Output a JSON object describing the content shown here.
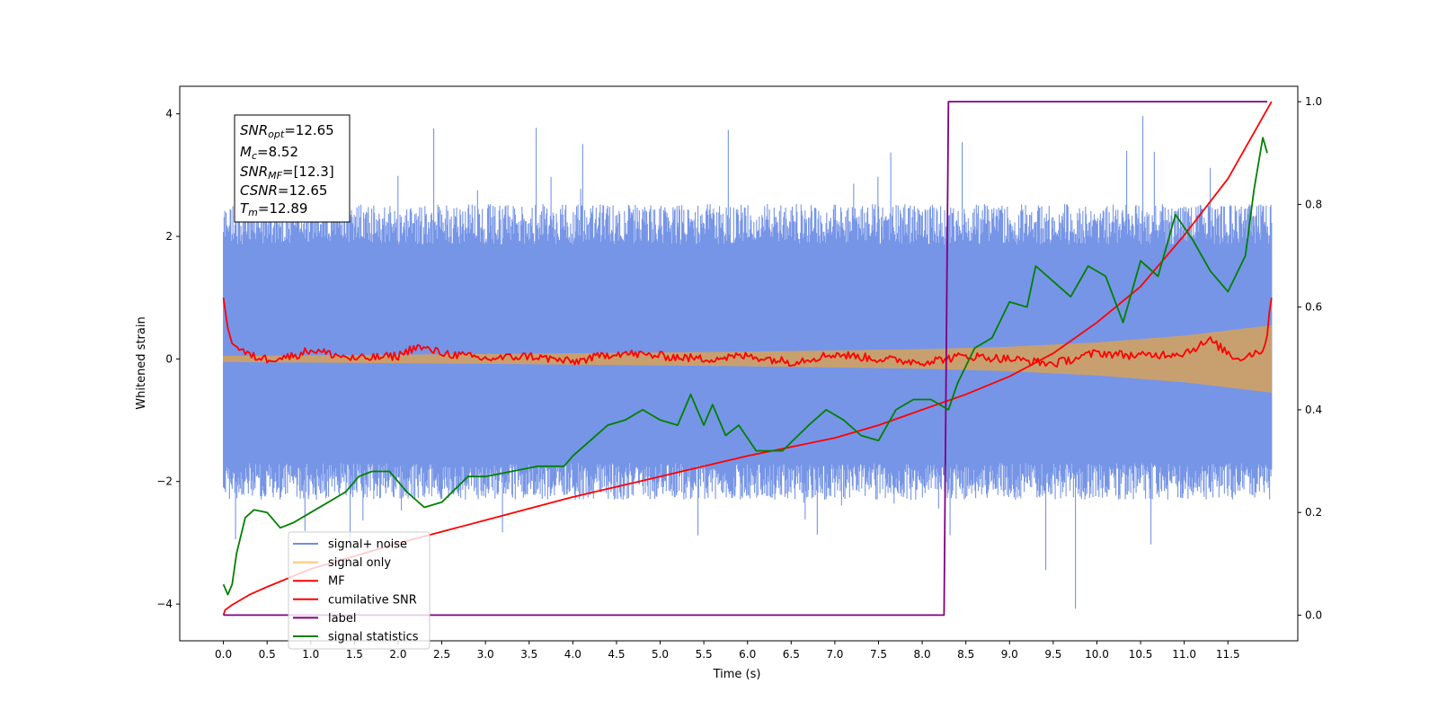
{
  "chart_data": {
    "type": "line",
    "xlabel": "Time (s)",
    "ylabel": "Whitened strain",
    "xlim": [
      -0.5,
      12.3
    ],
    "ylim_left": [
      -4.6,
      4.45
    ],
    "ylim_right": [
      -0.05,
      1.03
    ],
    "x_ticks": [
      "0.0",
      "0.5",
      "1.0",
      "1.5",
      "2.0",
      "2.5",
      "3.0",
      "3.5",
      "4.0",
      "4.5",
      "5.0",
      "5.5",
      "6.0",
      "6.5",
      "7.0",
      "7.5",
      "8.0",
      "8.5",
      "9.0",
      "9.5",
      "10.0",
      "10.5",
      "11.0",
      "11.5"
    ],
    "y_ticks_left": [
      "4",
      "2",
      "0",
      "−2",
      "−4"
    ],
    "y_ticks_right": [
      "1.0",
      "0.8",
      "0.6",
      "0.4",
      "0.2",
      "0.0"
    ],
    "annotation": {
      "snr_opt": {
        "main": "SNR",
        "sub": "opt",
        "value": "=12.65"
      },
      "mc": {
        "main": "M",
        "sub": "c",
        "value": "=8.52"
      },
      "snr_mf": {
        "main": "SNR",
        "sub": "MF",
        "value": "=[12.3]"
      },
      "csnr": {
        "main": "CSNR",
        "value": "=12.65"
      },
      "tm": {
        "main": "T",
        "sub": "m",
        "value": "=12.89"
      }
    },
    "legend": {
      "placement": "lower-left",
      "entries": [
        {
          "label": "signal+ noise",
          "color": "#6f8fe6"
        },
        {
          "label": "signal only",
          "color": "#ffc87a"
        },
        {
          "label": "MF",
          "color": "#ff0000"
        },
        {
          "label": "cumilative SNR",
          "color": "#ff0000"
        },
        {
          "label": "label",
          "color": "#800080"
        },
        {
          "label": "signal statistics",
          "color": "#008000"
        }
      ]
    },
    "series": [
      {
        "name": "signal+ noise",
        "axis": "left",
        "kind": "noise-band",
        "x_range": [
          0.0,
          12.0
        ],
        "envelope_lower": -2.0,
        "envelope_upper": 2.2,
        "peak_max": 4.0,
        "peak_min": -4.1,
        "color": "#6f8fe6"
      },
      {
        "name": "signal only",
        "axis": "left",
        "kind": "chirp",
        "x": [
          0.0,
          3.0,
          6.0,
          8.0,
          9.0,
          10.0,
          11.0,
          12.0
        ],
        "amplitude": [
          0.05,
          0.08,
          0.12,
          0.16,
          0.2,
          0.27,
          0.38,
          0.55
        ],
        "color": "#c8a070"
      },
      {
        "name": "MF",
        "axis": "left",
        "x": [
          0.0,
          0.05,
          0.1,
          0.2,
          0.3,
          0.5,
          0.8,
          1.0,
          1.5,
          2.0,
          2.2,
          2.5,
          3.0,
          3.5,
          4.0,
          4.5,
          5.0,
          5.5,
          6.0,
          6.5,
          7.0,
          7.5,
          8.0,
          8.5,
          9.0,
          9.5,
          10.0,
          10.5,
          11.0,
          11.3,
          11.6,
          11.9,
          11.95,
          12.0
        ],
        "y": [
          1.0,
          0.5,
          0.25,
          0.15,
          0.05,
          0.0,
          0.05,
          0.15,
          0.0,
          0.05,
          0.2,
          0.1,
          0.0,
          0.05,
          -0.05,
          0.1,
          0.05,
          0.0,
          0.05,
          -0.05,
          0.08,
          0.0,
          -0.05,
          0.05,
          0.0,
          -0.08,
          0.1,
          0.05,
          0.1,
          0.3,
          0.0,
          0.15,
          0.4,
          1.0
        ],
        "color": "#ff0000"
      },
      {
        "name": "cumilative SNR",
        "axis": "right",
        "x": [
          0.0,
          0.02,
          0.1,
          0.3,
          0.5,
          1.0,
          2.0,
          3.0,
          4.0,
          5.0,
          6.0,
          7.0,
          7.5,
          8.0,
          8.5,
          9.0,
          9.5,
          10.0,
          10.5,
          11.0,
          11.5,
          12.0
        ],
        "y": [
          0.0,
          0.01,
          0.02,
          0.04,
          0.055,
          0.09,
          0.14,
          0.185,
          0.23,
          0.27,
          0.31,
          0.345,
          0.37,
          0.4,
          0.43,
          0.465,
          0.51,
          0.57,
          0.64,
          0.74,
          0.85,
          1.0
        ],
        "color": "#ff0000"
      },
      {
        "name": "label",
        "axis": "right",
        "x": [
          0.0,
          8.25,
          8.3,
          11.95
        ],
        "y": [
          0.0,
          0.0,
          1.0,
          1.0
        ],
        "color": "#800080"
      },
      {
        "name": "signal statistics",
        "axis": "right",
        "x": [
          0.0,
          0.05,
          0.1,
          0.15,
          0.25,
          0.35,
          0.5,
          0.65,
          0.8,
          1.0,
          1.2,
          1.4,
          1.55,
          1.7,
          1.9,
          2.1,
          2.3,
          2.5,
          2.8,
          3.0,
          3.3,
          3.6,
          3.9,
          4.0,
          4.2,
          4.4,
          4.6,
          4.8,
          5.0,
          5.2,
          5.35,
          5.5,
          5.6,
          5.75,
          5.9,
          6.1,
          6.4,
          6.7,
          6.9,
          7.1,
          7.3,
          7.5,
          7.7,
          7.9,
          8.1,
          8.3,
          8.4,
          8.6,
          8.8,
          9.0,
          9.2,
          9.3,
          9.5,
          9.7,
          9.9,
          10.1,
          10.3,
          10.5,
          10.7,
          10.9,
          11.1,
          11.3,
          11.5,
          11.7,
          11.8,
          11.9,
          11.95
        ],
        "y": [
          0.06,
          0.04,
          0.06,
          0.12,
          0.19,
          0.205,
          0.2,
          0.17,
          0.18,
          0.2,
          0.22,
          0.24,
          0.27,
          0.28,
          0.28,
          0.24,
          0.21,
          0.22,
          0.27,
          0.27,
          0.28,
          0.29,
          0.29,
          0.31,
          0.34,
          0.37,
          0.38,
          0.4,
          0.38,
          0.37,
          0.43,
          0.37,
          0.41,
          0.35,
          0.37,
          0.32,
          0.32,
          0.37,
          0.4,
          0.38,
          0.35,
          0.34,
          0.4,
          0.42,
          0.42,
          0.4,
          0.45,
          0.52,
          0.54,
          0.61,
          0.6,
          0.68,
          0.65,
          0.62,
          0.68,
          0.66,
          0.57,
          0.69,
          0.66,
          0.78,
          0.73,
          0.67,
          0.63,
          0.7,
          0.83,
          0.93,
          0.9
        ],
        "color": "#008000"
      }
    ]
  }
}
